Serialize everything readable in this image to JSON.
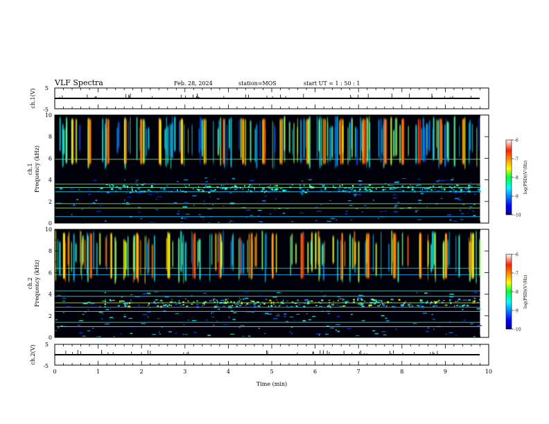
{
  "header": {
    "title": "VLF Spectra",
    "date": "Feb. 28, 2024",
    "station": "station=MOS",
    "start": "start  UT =   1 : 50 : 1"
  },
  "chart_data": [
    {
      "type": "line",
      "name": "waveform-ch1",
      "ylabel": "ch.1(V)",
      "ylim": [
        -5,
        5
      ],
      "ytick_labels": [
        "5",
        "-5"
      ],
      "xlim": [
        0,
        10
      ],
      "baseline": -1.0
    },
    {
      "type": "heatmap",
      "name": "spectrogram-ch1",
      "ylabel": "ch.1\nFrequency (kHz)",
      "ylim": [
        0,
        10
      ],
      "yticks": [
        0,
        2,
        4,
        6,
        8,
        10
      ],
      "xlim": [
        0,
        10
      ],
      "data_end_min": 9.8,
      "colorbar": {
        "label": "log(PSD)(V²/Hz)",
        "range": [
          -10,
          -6
        ],
        "ticks": [
          -10,
          -9,
          -8,
          -7,
          -6
        ]
      },
      "narrowband_lines_khz": [
        0.6,
        1.4,
        1.8,
        2.9,
        3.3,
        3.6,
        5.9
      ],
      "bursts_min": [
        0.4,
        0.8,
        1.2,
        1.6,
        2.0,
        2.4,
        2.9,
        3.45,
        3.9,
        4.3,
        4.8,
        5.2,
        5.8,
        6.2,
        6.6,
        7.1,
        7.6,
        8.0,
        8.4,
        8.9,
        9.4
      ]
    },
    {
      "type": "heatmap",
      "name": "spectrogram-ch2",
      "ylabel": "ch.2\nFrequency (kHz)",
      "ylim": [
        0,
        10
      ],
      "yticks": [
        0,
        2,
        4,
        6,
        8,
        10
      ],
      "xlim": [
        0,
        10
      ],
      "data_end_min": 9.8,
      "colorbar": {
        "label": "log(PSD)(V²/Hz)",
        "range": [
          -10,
          -6
        ],
        "ticks": [
          -10,
          -9,
          -8,
          -7,
          -6
        ]
      },
      "narrowband_lines_khz": [
        1.0,
        1.4,
        2.4,
        2.8,
        3.2,
        3.8,
        4.3,
        5.8,
        6.4
      ],
      "bursts_min": [
        0.2,
        0.8,
        1.3,
        1.9,
        2.6,
        3.2,
        3.8,
        4.5,
        5.0,
        5.7,
        6.6,
        7.2,
        7.8,
        8.4,
        9.0,
        9.6
      ]
    },
    {
      "type": "line",
      "name": "waveform-ch2",
      "ylabel": "ch.2(V)",
      "ylim": [
        -5,
        5
      ],
      "ytick_labels": [
        "5",
        "-5"
      ],
      "xlim": [
        0,
        10
      ],
      "baseline": -1.0,
      "xlabel": "Time (min)",
      "xticks": [
        0,
        1,
        2,
        3,
        4,
        5,
        6,
        7,
        8,
        9,
        10
      ]
    }
  ]
}
